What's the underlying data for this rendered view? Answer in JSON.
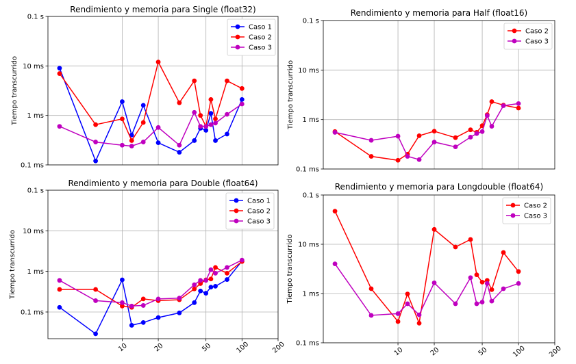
{
  "figure": {
    "ylabel": "Tiempo transcurrido",
    "yticks": [
      {
        "v": 0.1,
        "label": "0.1 ms"
      },
      {
        "v": 1,
        "label": "1 ms"
      },
      {
        "v": 10,
        "label": "10 ms"
      },
      {
        "v": 100,
        "label": "0.1 s"
      }
    ],
    "xticks": [
      {
        "v": 10,
        "label": "10"
      },
      {
        "v": 20,
        "label": "20"
      },
      {
        "v": 50,
        "label": "50"
      },
      {
        "v": 100,
        "label": "100"
      },
      {
        "v": 200,
        "label": "200"
      }
    ],
    "series_colors": {
      "Caso 1": "#0000ff",
      "Caso 2": "#ff0000",
      "Caso 3": "#bf00bf"
    }
  },
  "chart_data": [
    {
      "type": "line",
      "title": "Rendimiento y memoria para Single (float32)",
      "ylabel": "Tiempo transcurrido",
      "xscale": "log",
      "yscale": "log",
      "xlim": [
        2.4,
        200
      ],
      "ylim": [
        0.1,
        100
      ],
      "show_xticks": false,
      "grid": true,
      "legend": "top-right",
      "series": [
        {
          "name": "Caso 1",
          "x": [
            3,
            6,
            10,
            12,
            15,
            20,
            30,
            40,
            45,
            50,
            55,
            60,
            75,
            100
          ],
          "y": [
            9,
            0.12,
            1.9,
            0.4,
            1.6,
            0.28,
            0.18,
            0.31,
            0.55,
            0.5,
            1.1,
            0.31,
            0.42,
            2.1
          ]
        },
        {
          "name": "Caso 2",
          "x": [
            3,
            6,
            10,
            12,
            15,
            20,
            30,
            40,
            45,
            50,
            55,
            60,
            75,
            100
          ],
          "y": [
            7,
            0.65,
            0.85,
            0.31,
            0.72,
            12,
            1.8,
            5,
            1.0,
            0.6,
            2.1,
            0.85,
            5,
            3.5
          ]
        },
        {
          "name": "Caso 3",
          "x": [
            3,
            6,
            10,
            12,
            15,
            20,
            30,
            40,
            45,
            50,
            55,
            60,
            75,
            100
          ],
          "y": [
            0.6,
            0.29,
            0.25,
            0.24,
            0.29,
            0.57,
            0.25,
            1.15,
            0.6,
            0.6,
            0.65,
            0.7,
            1.05,
            1.7
          ]
        }
      ]
    },
    {
      "type": "line",
      "title": "Rendimiento y memoria para Half (float16)",
      "ylabel": "Tiempo transcurrido",
      "xscale": "log",
      "yscale": "log",
      "xlim": [
        2.4,
        200
      ],
      "ylim": [
        0.1,
        100
      ],
      "show_xticks": false,
      "grid": true,
      "legend": "top-right",
      "series": [
        {
          "name": "Caso 2",
          "x": [
            3,
            6,
            10,
            12,
            15,
            20,
            30,
            40,
            45,
            50,
            55,
            60,
            75,
            100
          ],
          "y": [
            0.57,
            0.18,
            0.15,
            0.2,
            0.47,
            0.58,
            0.43,
            0.62,
            0.55,
            0.75,
            1.25,
            2.3,
            1.95,
            1.7
          ]
        },
        {
          "name": "Caso 3",
          "x": [
            3,
            6,
            10,
            12,
            15,
            20,
            30,
            40,
            45,
            50,
            55,
            60,
            75,
            100
          ],
          "y": [
            0.55,
            0.38,
            0.46,
            0.18,
            0.155,
            0.35,
            0.28,
            0.44,
            0.52,
            0.57,
            1.2,
            0.73,
            1.9,
            2.1
          ]
        }
      ]
    },
    {
      "type": "line",
      "title": "Rendimiento y memoria para Double (float64)",
      "ylabel": "Tiempo transcurrido",
      "xscale": "log",
      "yscale": "log",
      "xlim": [
        2.4,
        200
      ],
      "ylim": [
        0.022,
        100
      ],
      "show_xticks": true,
      "grid": true,
      "legend": "top-right",
      "series": [
        {
          "name": "Caso 1",
          "x": [
            3,
            6,
            10,
            12,
            15,
            20,
            30,
            40,
            45,
            50,
            55,
            60,
            75,
            100
          ],
          "y": [
            0.13,
            0.029,
            0.62,
            0.047,
            0.055,
            0.073,
            0.095,
            0.17,
            0.33,
            0.29,
            0.41,
            0.43,
            0.63,
            1.8
          ]
        },
        {
          "name": "Caso 2",
          "x": [
            3,
            6,
            10,
            12,
            15,
            20,
            30,
            40,
            45,
            50,
            55,
            60,
            75,
            100
          ],
          "y": [
            0.36,
            0.36,
            0.14,
            0.13,
            0.21,
            0.19,
            0.2,
            0.37,
            0.5,
            0.62,
            0.65,
            1.25,
            0.9,
            1.75
          ]
        },
        {
          "name": "Caso 3",
          "x": [
            3,
            6,
            10,
            12,
            15,
            20,
            30,
            40,
            45,
            50,
            55,
            60,
            75,
            100
          ],
          "y": [
            0.6,
            0.19,
            0.17,
            0.14,
            0.145,
            0.21,
            0.22,
            0.47,
            0.6,
            0.6,
            1.1,
            0.9,
            1.25,
            1.9
          ]
        }
      ]
    },
    {
      "type": "line",
      "title": "Rendimiento y memoria para Longdouble  (float64)",
      "ylabel": "Tiempo transcurrido",
      "xscale": "log",
      "yscale": "log",
      "xlim": [
        2.4,
        200
      ],
      "ylim": [
        0.1,
        100
      ],
      "show_xticks": true,
      "grid": true,
      "legend": "top-right",
      "series": [
        {
          "name": "Caso 2",
          "x": [
            3,
            6,
            10,
            12,
            15,
            20,
            30,
            40,
            45,
            50,
            55,
            60,
            75,
            100
          ],
          "y": [
            47,
            1.25,
            0.27,
            0.98,
            0.25,
            20,
            8.8,
            12.5,
            2.4,
            1.7,
            1.85,
            1.2,
            6.8,
            2.8
          ]
        },
        {
          "name": "Caso 3",
          "x": [
            3,
            6,
            10,
            12,
            15,
            20,
            30,
            40,
            45,
            50,
            55,
            60,
            75,
            100
          ],
          "y": [
            4,
            0.36,
            0.39,
            0.62,
            0.37,
            1.65,
            0.62,
            2.1,
            0.62,
            0.67,
            1.6,
            0.7,
            1.25,
            1.6
          ]
        }
      ]
    }
  ]
}
